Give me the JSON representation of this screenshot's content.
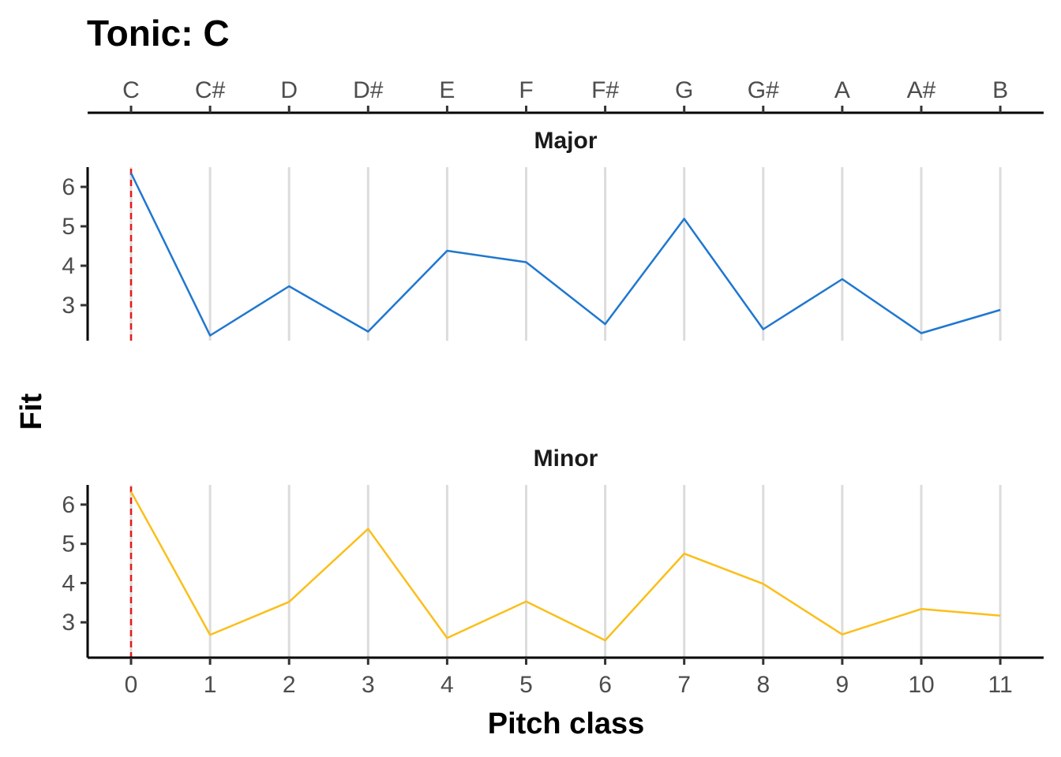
{
  "chart_data": {
    "type": "line",
    "title": "Tonic: C",
    "xlabel": "Pitch class",
    "ylabel": "Fit",
    "x": [
      0,
      1,
      2,
      3,
      4,
      5,
      6,
      7,
      8,
      9,
      10,
      11
    ],
    "x_top_labels": [
      "C",
      "C#",
      "D",
      "D#",
      "E",
      "F",
      "F#",
      "G",
      "G#",
      "A",
      "A#",
      "B"
    ],
    "xlim": [
      -0.55,
      11.55
    ],
    "ylim": [
      2.1,
      6.5
    ],
    "y_ticks": [
      3,
      4,
      5,
      6
    ],
    "grid": "vertical",
    "tonic_marker": {
      "x": 0,
      "color": "#e41a1c"
    },
    "series": [
      {
        "name": "Major",
        "color": "#1f77d0",
        "values": [
          6.35,
          2.23,
          3.48,
          2.33,
          4.38,
          4.09,
          2.52,
          5.19,
          2.39,
          3.66,
          2.29,
          2.88
        ]
      },
      {
        "name": "Minor",
        "color": "#fbbf1a",
        "values": [
          6.33,
          2.68,
          3.52,
          5.38,
          2.6,
          3.53,
          2.54,
          4.75,
          3.98,
          2.69,
          3.34,
          3.17
        ]
      }
    ]
  }
}
